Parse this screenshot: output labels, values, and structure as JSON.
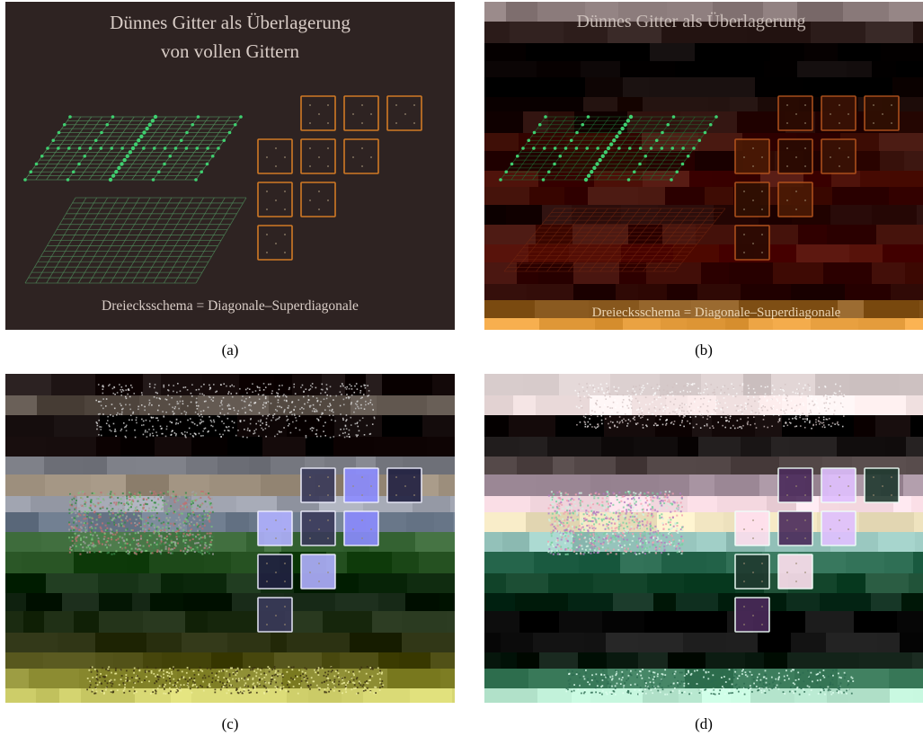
{
  "slide": {
    "title_line1": "Dünnes Gitter als Überlagerung",
    "title_line2": "von vollen Gittern",
    "footer": "Dreiecksschema = Diagonale–Superdiagonale"
  },
  "captions": {
    "a": "(a)",
    "b": "(b)",
    "c": "(c)",
    "d": "(d)"
  },
  "colors": {
    "slide_bg": "#2e2322",
    "text": "#d8ccc6",
    "grid_green": "#4f8a5a",
    "dot_green": "#3fd070",
    "box_orange": "#d07a25"
  }
}
